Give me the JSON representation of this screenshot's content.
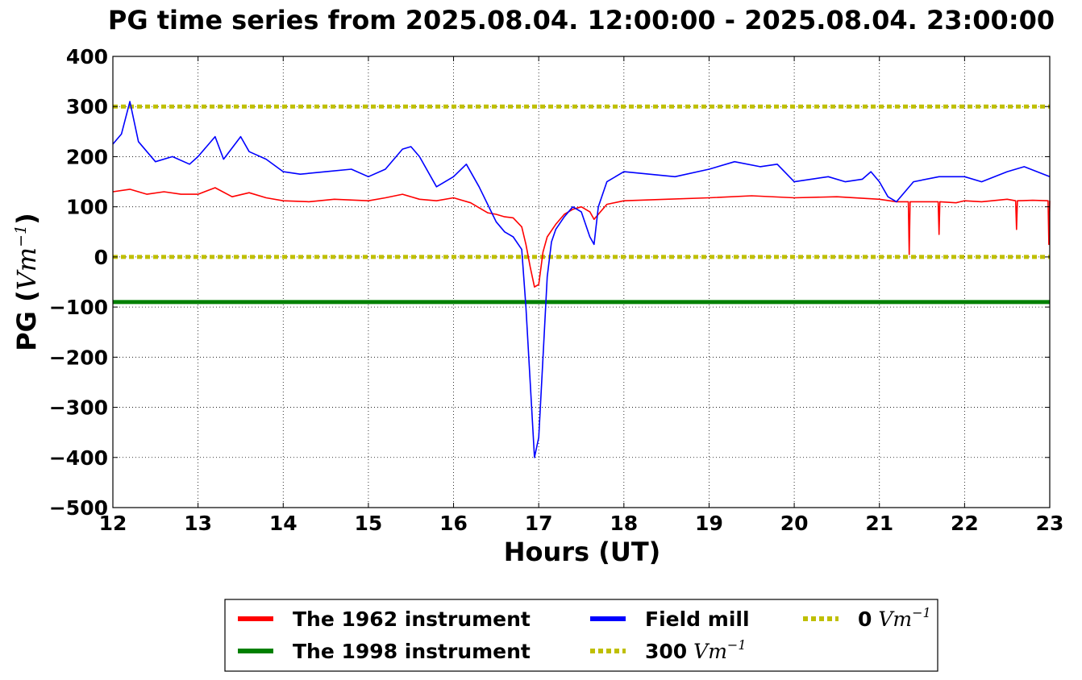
{
  "chart_data": {
    "type": "line",
    "title": "PG time series from 2025.08.04. 12:00:00 - 2025.08.04. 23:00:00",
    "xlabel": "Hours (UT)",
    "ylabel_main": "PG (",
    "ylabel_unit": "Vm",
    "ylabel_exp": "−1",
    "ylabel_close": ")",
    "xlim": [
      12,
      23
    ],
    "ylim": [
      -500,
      400
    ],
    "xticks": [
      12,
      13,
      14,
      15,
      16,
      17,
      18,
      19,
      20,
      21,
      22,
      23
    ],
    "yticks": [
      400,
      300,
      200,
      100,
      0,
      -100,
      -200,
      -300,
      -400,
      -500
    ],
    "ytick_labels": [
      "400",
      "300",
      "200",
      "100",
      "0",
      "−100",
      "−200",
      "−300",
      "−400",
      "−500"
    ],
    "grid": true,
    "legend_position": "bottom-center",
    "series": [
      {
        "name": "The 1962 instrument",
        "color": "#ff0000",
        "style": "solid",
        "x": [
          12.0,
          12.2,
          12.4,
          12.6,
          12.8,
          13.0,
          13.2,
          13.4,
          13.6,
          13.8,
          14.0,
          14.3,
          14.6,
          15.0,
          15.2,
          15.4,
          15.6,
          15.8,
          16.0,
          16.2,
          16.4,
          16.5,
          16.6,
          16.7,
          16.8,
          16.85,
          16.9,
          16.95,
          17.0,
          17.05,
          17.1,
          17.2,
          17.3,
          17.4,
          17.5,
          17.6,
          17.65,
          17.7,
          17.8,
          18.0,
          18.5,
          19.0,
          19.5,
          20.0,
          20.5,
          21.0,
          21.2,
          21.34,
          21.35,
          21.36,
          21.5,
          21.69,
          21.7,
          21.71,
          21.9,
          21.95,
          22.0,
          22.2,
          22.5,
          22.6,
          22.61,
          22.62,
          22.8,
          22.98,
          22.99,
          23.0
        ],
        "y": [
          130,
          135,
          125,
          130,
          125,
          125,
          138,
          120,
          128,
          118,
          112,
          110,
          115,
          112,
          118,
          125,
          115,
          112,
          118,
          108,
          88,
          85,
          80,
          78,
          60,
          25,
          -20,
          -60,
          -55,
          10,
          40,
          65,
          85,
          95,
          100,
          90,
          75,
          85,
          105,
          112,
          115,
          118,
          122,
          118,
          120,
          115,
          110,
          110,
          5,
          110,
          110,
          110,
          45,
          110,
          108,
          110,
          112,
          110,
          115,
          112,
          55,
          112,
          113,
          112,
          25,
          112
        ]
      },
      {
        "name": "Field mill",
        "color": "#0000ff",
        "style": "solid",
        "x": [
          12.0,
          12.1,
          12.2,
          12.3,
          12.5,
          12.7,
          12.9,
          13.0,
          13.2,
          13.3,
          13.5,
          13.6,
          13.8,
          14.0,
          14.2,
          14.5,
          14.8,
          15.0,
          15.2,
          15.4,
          15.5,
          15.6,
          15.8,
          16.0,
          16.15,
          16.3,
          16.5,
          16.6,
          16.7,
          16.8,
          16.85,
          16.9,
          16.95,
          17.0,
          17.05,
          17.1,
          17.15,
          17.2,
          17.3,
          17.4,
          17.5,
          17.6,
          17.65,
          17.7,
          17.8,
          18.0,
          18.3,
          18.6,
          19.0,
          19.3,
          19.6,
          19.8,
          20.0,
          20.2,
          20.4,
          20.6,
          20.8,
          20.9,
          21.0,
          21.1,
          21.2,
          21.4,
          21.7,
          22.0,
          22.2,
          22.5,
          22.7,
          23.0
        ],
        "y": [
          225,
          245,
          310,
          230,
          190,
          200,
          185,
          200,
          240,
          195,
          240,
          210,
          195,
          170,
          165,
          170,
          175,
          160,
          175,
          215,
          220,
          200,
          140,
          160,
          185,
          140,
          70,
          50,
          40,
          15,
          -100,
          -250,
          -400,
          -360,
          -200,
          -40,
          30,
          55,
          80,
          100,
          90,
          40,
          25,
          100,
          150,
          170,
          165,
          160,
          175,
          190,
          180,
          185,
          150,
          155,
          160,
          150,
          155,
          170,
          150,
          120,
          110,
          150,
          160,
          160,
          150,
          170,
          180,
          160
        ]
      }
    ],
    "hlines": [
      {
        "name": "The 1998 instrument",
        "value": -90,
        "color": "#008000",
        "style": "solid"
      },
      {
        "name": "300 Vm−1",
        "value": 300,
        "color": "#bfbf00",
        "style": "dotted"
      },
      {
        "name": "0 Vm−1",
        "value": 0,
        "color": "#bfbf00",
        "style": "dotted"
      }
    ],
    "legend": [
      {
        "label": "The 1962 instrument",
        "color": "#ff0000",
        "style": "solid"
      },
      {
        "label": "The 1998 instrument",
        "color": "#008000",
        "style": "solid"
      },
      {
        "label": "Field mill",
        "color": "#0000ff",
        "style": "solid"
      },
      {
        "label": "300",
        "unit": "Vm",
        "exp": "−1",
        "color": "#bfbf00",
        "style": "dotted"
      },
      {
        "label": "0",
        "unit": "Vm",
        "exp": "−1",
        "color": "#bfbf00",
        "style": "dotted"
      }
    ]
  }
}
